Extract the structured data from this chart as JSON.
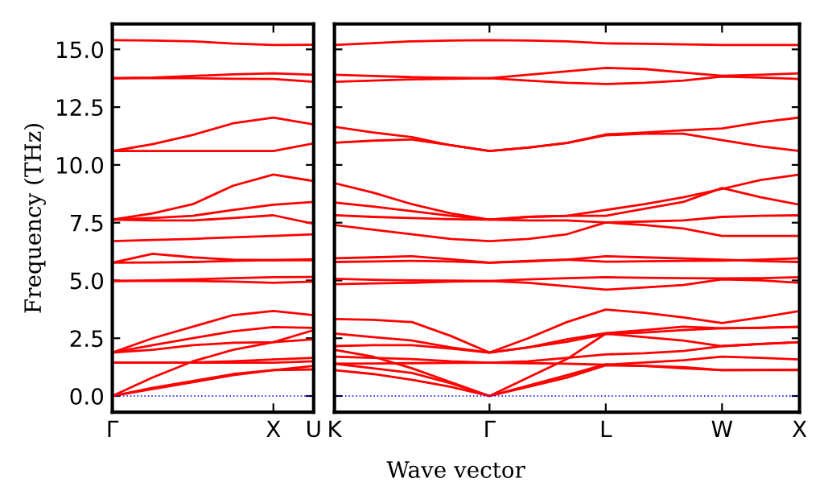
{
  "chart_data": [
    {
      "type": "line",
      "ylabel": "Frequency (THz)",
      "categories": [
        "Γ",
        null,
        null,
        null,
        "X",
        "U"
      ],
      "ylim": [
        -0.7,
        16.1
      ],
      "yticks": [
        {
          "value": 0,
          "label": "0.0"
        },
        2.5,
        {
          "value": 5,
          "label": "5.0"
        },
        7.5,
        {
          "value": 10,
          "label": "10.0"
        },
        12.5,
        {
          "value": 15,
          "label": "15.0"
        }
      ],
      "grid": false,
      "legend": false,
      "marker": "none",
      "line_style": "solid",
      "ref_lines": [
        {
          "axis": "y",
          "value": 0,
          "color": "#0000ff",
          "line_style": "dotted"
        }
      ],
      "series": [
        {
          "color": "#ff0000",
          "values": [
            0,
            0.3,
            0.6,
            0.9,
            1.12,
            1.15
          ]
        },
        {
          "color": "#ff0000",
          "values": [
            0,
            0.35,
            0.65,
            0.95,
            1.12,
            1.3
          ]
        },
        {
          "color": "#ff0000",
          "values": [
            0,
            0.8,
            1.5,
            2.0,
            2.33,
            2.45
          ]
        },
        {
          "color": "#ff0000",
          "values": [
            1.44,
            1.44,
            1.45,
            1.5,
            1.58,
            1.65
          ]
        },
        {
          "color": "#ff0000",
          "values": [
            1.44,
            1.44,
            1.44,
            1.44,
            1.44,
            1.5
          ]
        },
        {
          "color": "#ff0000",
          "values": [
            1.88,
            2.0,
            2.2,
            2.3,
            2.33,
            2.85
          ]
        },
        {
          "color": "#ff0000",
          "values": [
            1.88,
            2.2,
            2.5,
            2.8,
            2.98,
            2.95
          ]
        },
        {
          "color": "#ff0000",
          "values": [
            1.88,
            2.5,
            3.0,
            3.5,
            3.68,
            3.5
          ]
        },
        {
          "color": "#ff0000",
          "values": [
            4.98,
            4.98,
            4.98,
            4.95,
            4.9,
            4.95
          ]
        },
        {
          "color": "#ff0000",
          "values": [
            4.98,
            5.0,
            5.05,
            5.1,
            5.14,
            5.15
          ]
        },
        {
          "color": "#ff0000",
          "values": [
            5.77,
            6.15,
            6.0,
            5.9,
            5.88,
            5.92
          ]
        },
        {
          "color": "#ff0000",
          "values": [
            5.77,
            5.78,
            5.8,
            5.85,
            5.88,
            5.87
          ]
        },
        {
          "color": "#ff0000",
          "values": [
            6.7,
            6.75,
            6.8,
            6.87,
            6.93,
            7.0
          ]
        },
        {
          "color": "#ff0000",
          "values": [
            7.63,
            7.6,
            7.6,
            7.7,
            7.82,
            7.45
          ]
        },
        {
          "color": "#ff0000",
          "values": [
            7.63,
            7.7,
            7.8,
            8.05,
            8.28,
            8.4
          ]
        },
        {
          "color": "#ff0000",
          "values": [
            7.63,
            7.9,
            8.3,
            9.1,
            9.58,
            9.3
          ]
        },
        {
          "color": "#ff0000",
          "values": [
            10.6,
            10.6,
            10.6,
            10.6,
            10.6,
            10.93
          ]
        },
        {
          "color": "#ff0000",
          "values": [
            10.6,
            10.9,
            11.3,
            11.8,
            12.05,
            11.75
          ]
        },
        {
          "color": "#ff0000",
          "values": [
            13.75,
            13.75,
            13.75,
            13.73,
            13.72,
            13.6
          ]
        },
        {
          "color": "#ff0000",
          "values": [
            13.75,
            13.78,
            13.85,
            13.92,
            13.96,
            13.9
          ]
        },
        {
          "color": "#ff0000",
          "values": [
            15.4,
            15.38,
            15.35,
            15.25,
            15.19,
            15.2
          ]
        }
      ]
    },
    {
      "type": "line",
      "xlabel": "Wave vector",
      "categories": [
        "K",
        null,
        null,
        null,
        "Γ",
        null,
        null,
        "L",
        null,
        null,
        "W",
        null,
        "X"
      ],
      "ylim": [
        -0.7,
        16.1
      ],
      "yticks": [
        0,
        2.5,
        5,
        7.5,
        10,
        12.5,
        15
      ],
      "tick_labels": "x",
      "grid": false,
      "legend": false,
      "marker": "none",
      "line_style": "solid",
      "ref_lines": [
        {
          "axis": "y",
          "value": 0,
          "color": "#0000ff",
          "line_style": "dotted"
        }
      ],
      "series": [
        {
          "color": "#ff0000",
          "values": [
            1.12,
            0.95,
            0.7,
            0.4,
            0,
            0.4,
            0.8,
            1.33,
            1.3,
            1.2,
            1.12,
            1.12,
            1.12
          ]
        },
        {
          "color": "#ff0000",
          "values": [
            1.4,
            1.2,
            1.0,
            0.55,
            0,
            0.45,
            0.9,
            1.37,
            1.3,
            1.25,
            1.12,
            1.13,
            1.14
          ]
        },
        {
          "color": "#ff0000",
          "values": [
            2.0,
            1.7,
            1.2,
            0.6,
            0,
            0.8,
            1.6,
            2.7,
            2.55,
            2.4,
            2.16,
            2.25,
            2.33
          ]
        },
        {
          "color": "#ff0000",
          "values": [
            1.4,
            1.41,
            1.42,
            1.43,
            1.44,
            1.42,
            1.4,
            1.35,
            1.45,
            1.55,
            1.7,
            1.65,
            1.58
          ]
        },
        {
          "color": "#ff0000",
          "values": [
            1.7,
            1.65,
            1.6,
            1.5,
            1.44,
            1.5,
            1.65,
            1.8,
            1.85,
            1.95,
            2.16,
            2.25,
            2.33
          ]
        },
        {
          "color": "#ff0000",
          "values": [
            2.16,
            2.2,
            2.2,
            2.05,
            1.88,
            2.1,
            2.35,
            2.68,
            2.75,
            2.85,
            2.93,
            2.95,
            2.98
          ]
        },
        {
          "color": "#ff0000",
          "values": [
            2.7,
            2.55,
            2.4,
            2.1,
            1.88,
            2.1,
            2.45,
            2.72,
            2.85,
            3.0,
            2.93,
            2.96,
            3.0
          ]
        },
        {
          "color": "#ff0000",
          "values": [
            3.33,
            3.3,
            3.2,
            2.6,
            1.88,
            2.5,
            3.2,
            3.74,
            3.6,
            3.4,
            3.16,
            3.4,
            3.68
          ]
        },
        {
          "color": "#ff0000",
          "values": [
            4.84,
            4.87,
            4.9,
            4.95,
            4.98,
            4.9,
            4.75,
            4.6,
            4.7,
            4.8,
            5.05,
            5.0,
            4.9
          ]
        },
        {
          "color": "#ff0000",
          "values": [
            5.07,
            5.03,
            5.0,
            4.99,
            4.98,
            5.05,
            5.1,
            5.14,
            5.12,
            5.1,
            5.09,
            5.1,
            5.14
          ]
        },
        {
          "color": "#ff0000",
          "values": [
            5.96,
            6.0,
            6.05,
            5.92,
            5.77,
            5.85,
            5.9,
            5.81,
            5.83,
            5.85,
            5.86,
            5.9,
            5.96
          ]
        },
        {
          "color": "#ff0000",
          "values": [
            5.8,
            5.82,
            5.85,
            5.82,
            5.77,
            5.82,
            5.9,
            6.05,
            6.0,
            5.95,
            5.9,
            5.84,
            5.8
          ]
        },
        {
          "color": "#ff0000",
          "values": [
            7.4,
            7.2,
            7.0,
            6.8,
            6.7,
            6.8,
            7.0,
            7.51,
            7.4,
            7.25,
            6.93,
            6.93,
            6.93
          ]
        },
        {
          "color": "#ff0000",
          "values": [
            7.82,
            7.75,
            7.7,
            7.65,
            7.63,
            7.6,
            7.6,
            7.51,
            7.55,
            7.6,
            7.75,
            7.8,
            7.82
          ]
        },
        {
          "color": "#ff0000",
          "values": [
            8.37,
            8.2,
            8.0,
            7.8,
            7.63,
            7.75,
            7.8,
            8.05,
            8.3,
            8.6,
            8.96,
            9.35,
            9.58
          ]
        },
        {
          "color": "#ff0000",
          "values": [
            9.21,
            8.8,
            8.3,
            7.9,
            7.63,
            7.75,
            7.8,
            7.8,
            8.1,
            8.4,
            9.0,
            8.6,
            8.28
          ]
        },
        {
          "color": "#ff0000",
          "values": [
            10.96,
            11.05,
            11.1,
            10.85,
            10.6,
            10.75,
            10.95,
            11.28,
            11.35,
            11.35,
            11.07,
            10.8,
            10.6
          ]
        },
        {
          "color": "#ff0000",
          "values": [
            11.65,
            11.4,
            11.2,
            10.85,
            10.6,
            10.75,
            10.95,
            11.32,
            11.4,
            11.5,
            11.58,
            11.85,
            12.05
          ]
        },
        {
          "color": "#ff0000",
          "values": [
            13.6,
            13.65,
            13.7,
            13.73,
            13.75,
            13.65,
            13.55,
            13.5,
            13.55,
            13.65,
            13.82,
            13.78,
            13.72
          ]
        },
        {
          "color": "#ff0000",
          "values": [
            13.9,
            13.85,
            13.8,
            13.77,
            13.75,
            13.9,
            14.05,
            14.2,
            14.15,
            14.0,
            13.86,
            13.9,
            13.96
          ]
        },
        {
          "color": "#ff0000",
          "values": [
            15.19,
            15.27,
            15.35,
            15.38,
            15.4,
            15.38,
            15.35,
            15.26,
            15.24,
            15.22,
            15.19,
            15.19,
            15.19
          ]
        }
      ]
    }
  ]
}
